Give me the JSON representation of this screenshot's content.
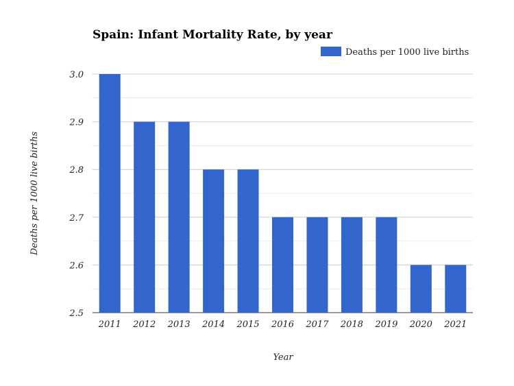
{
  "chart_data": {
    "type": "bar",
    "title": "Spain: Infant Mortality Rate, by year",
    "xlabel": "Year",
    "ylabel": "Deaths per 1000 live births",
    "categories": [
      "2011",
      "2012",
      "2013",
      "2014",
      "2015",
      "2016",
      "2017",
      "2018",
      "2019",
      "2020",
      "2021"
    ],
    "series": [
      {
        "name": "Deaths per 1000 live births",
        "values": [
          3.0,
          2.9,
          2.9,
          2.8,
          2.8,
          2.7,
          2.7,
          2.7,
          2.7,
          2.6,
          2.6
        ],
        "color": "#3366cc"
      }
    ],
    "ylim": [
      2.5,
      3.0
    ],
    "yticks": [
      "2.5",
      "2.6",
      "2.7",
      "2.8",
      "2.9",
      "3.0"
    ],
    "grid": true,
    "legend": "top-right"
  }
}
